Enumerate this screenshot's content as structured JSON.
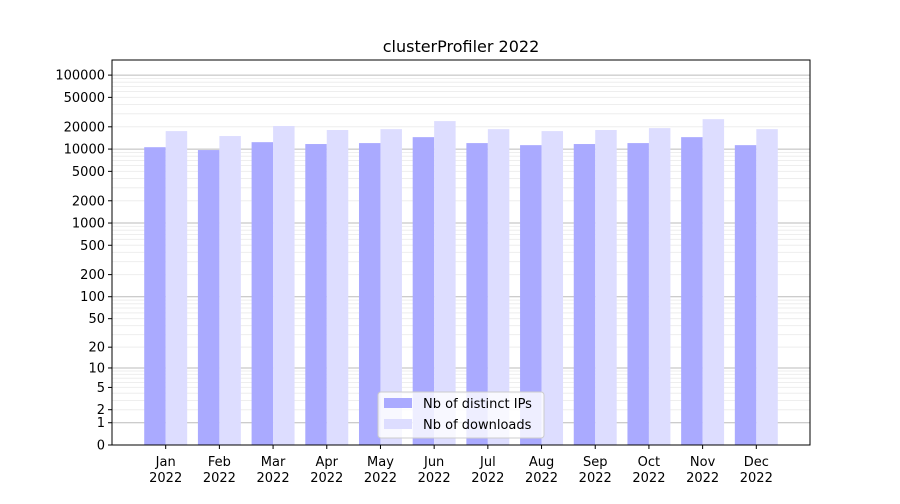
{
  "chart_data": {
    "type": "bar",
    "title": "clusterProfiler 2022",
    "xlabel": "",
    "ylabel": "",
    "yscale": "log(1+y)",
    "ylim": [
      0,
      160000
    ],
    "grid": true,
    "legend_position": "bottom-center",
    "categories": [
      "Jan\n2022",
      "Feb\n2022",
      "Mar\n2022",
      "Apr\n2022",
      "May\n2022",
      "Jun\n2022",
      "Jul\n2022",
      "Aug\n2022",
      "Sep\n2022",
      "Oct\n2022",
      "Nov\n2022",
      "Dec\n2022"
    ],
    "yticks": [
      0,
      1,
      2,
      5,
      10,
      20,
      50,
      100,
      200,
      500,
      1000,
      2000,
      5000,
      10000,
      20000,
      50000,
      100000
    ],
    "series": [
      {
        "name": "Nb of distinct IPs",
        "color": "#aaaaff",
        "values": [
          10600,
          9700,
          12400,
          11700,
          12050,
          14500,
          12050,
          11300,
          11700,
          12050,
          14500,
          11300
        ]
      },
      {
        "name": "Nb of downloads",
        "color": "#ddddff",
        "values": [
          17500,
          15000,
          20500,
          18100,
          18600,
          23900,
          18600,
          17500,
          18100,
          19200,
          25400,
          18600
        ]
      }
    ]
  }
}
